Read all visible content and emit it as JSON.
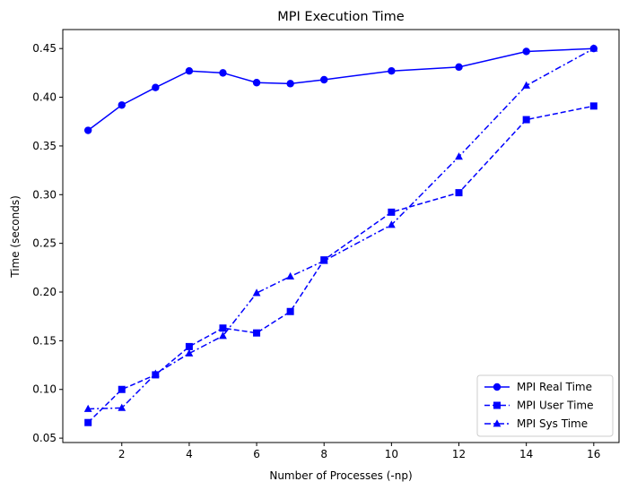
{
  "chart_data": {
    "type": "line",
    "title": "MPI Execution Time",
    "xlabel": "Number of Processes (-np)",
    "ylabel": "Time (seconds)",
    "x": [
      1,
      2,
      3,
      4,
      5,
      6,
      7,
      8,
      10,
      12,
      14,
      16
    ],
    "xlim": [
      0.25,
      16.75
    ],
    "ylim": [
      0.0455,
      0.4695
    ],
    "xticks": [
      2,
      4,
      6,
      8,
      10,
      12,
      14,
      16
    ],
    "yticks": [
      0.05,
      0.1,
      0.15,
      0.2,
      0.25,
      0.3,
      0.35,
      0.4,
      0.45
    ],
    "xtick_labels": [
      "2",
      "4",
      "6",
      "8",
      "10",
      "12",
      "14",
      "16"
    ],
    "ytick_labels": [
      "0.05",
      "0.10",
      "0.15",
      "0.20",
      "0.25",
      "0.30",
      "0.35",
      "0.40",
      "0.45"
    ],
    "grid": false,
    "legend_position": "lower-right",
    "series": [
      {
        "name": "MPI Real Time",
        "color": "#0000ff",
        "marker": "circle",
        "linestyle": "solid",
        "values": [
          0.366,
          0.392,
          0.41,
          0.427,
          0.425,
          0.415,
          0.414,
          0.418,
          0.427,
          0.431,
          0.447,
          0.45
        ]
      },
      {
        "name": "MPI User Time",
        "color": "#0000ff",
        "marker": "square",
        "linestyle": "dashed",
        "values": [
          0.066,
          0.1,
          0.115,
          0.144,
          0.163,
          0.158,
          0.18,
          0.233,
          0.282,
          0.302,
          0.377,
          0.391
        ]
      },
      {
        "name": "MPI Sys Time",
        "color": "#0000ff",
        "marker": "triangle",
        "linestyle": "dashdot",
        "values": [
          0.08,
          0.081,
          0.116,
          0.137,
          0.155,
          0.199,
          0.216,
          0.232,
          0.269,
          0.339,
          0.412,
          0.45
        ]
      }
    ]
  }
}
